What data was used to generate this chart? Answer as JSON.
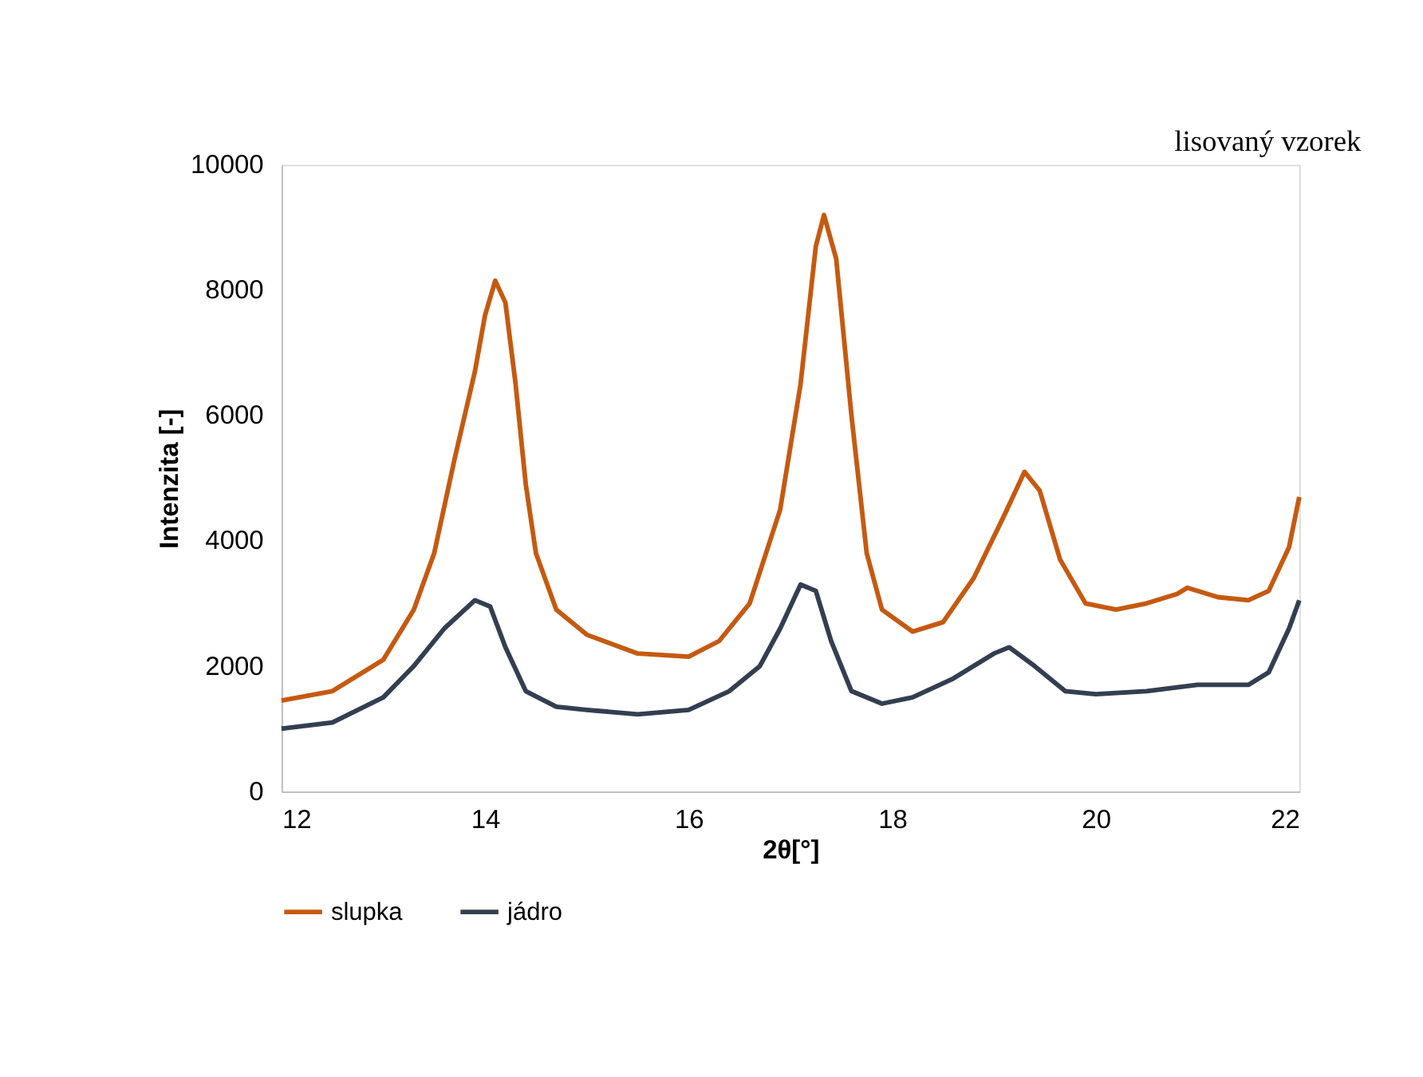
{
  "chart_data": {
    "type": "line",
    "xlabel": "2θ[°]",
    "ylabel": "Intenzita [-]",
    "annotations": [
      "lisovaný vzorek"
    ],
    "xlim": [
      12,
      22
    ],
    "xticks": [
      12,
      14,
      16,
      18,
      20,
      22
    ],
    "ylim": [
      0,
      10000
    ],
    "yticks": [
      0,
      2000,
      4000,
      6000,
      8000,
      10000
    ],
    "grid": false,
    "legend": "bottom",
    "marker": "none",
    "line_style": "solid",
    "series": [
      {
        "name": "slupka",
        "color": "#c55a11",
        "x": [
          12,
          12.5,
          13,
          13.3,
          13.5,
          13.7,
          13.9,
          14.0,
          14.1,
          14.2,
          14.3,
          14.4,
          14.5,
          14.7,
          15,
          15.5,
          16,
          16.3,
          16.6,
          16.9,
          17.1,
          17.25,
          17.33,
          17.45,
          17.6,
          17.75,
          17.9,
          18.2,
          18.5,
          18.8,
          19.1,
          19.3,
          19.45,
          19.65,
          19.9,
          20.2,
          20.5,
          20.8,
          20.9,
          21.2,
          21.5,
          21.7,
          21.9,
          22
        ],
        "values": [
          1450,
          1600,
          2100,
          2900,
          3800,
          5300,
          6700,
          7600,
          8150,
          7800,
          6500,
          4900,
          3800,
          2900,
          2500,
          2200,
          2150,
          2400,
          3000,
          4500,
          6500,
          8700,
          9200,
          8500,
          6000,
          3800,
          2900,
          2550,
          2700,
          3400,
          4400,
          5100,
          4800,
          3700,
          3000,
          2900,
          3000,
          3150,
          3250,
          3100,
          3050,
          3200,
          3900,
          4700
        ]
      },
      {
        "name": "jádro",
        "color": "#333f50",
        "x": [
          12,
          12.5,
          13,
          13.3,
          13.6,
          13.9,
          14.05,
          14.2,
          14.4,
          14.7,
          15,
          15.5,
          16,
          16.4,
          16.7,
          16.9,
          17.1,
          17.25,
          17.4,
          17.6,
          17.9,
          18.2,
          18.6,
          19.0,
          19.15,
          19.4,
          19.7,
          20,
          20.5,
          21,
          21.5,
          21.7,
          21.9,
          22
        ],
        "values": [
          1000,
          1100,
          1500,
          2000,
          2600,
          3050,
          2950,
          2300,
          1600,
          1350,
          1300,
          1230,
          1300,
          1600,
          2000,
          2600,
          3300,
          3200,
          2400,
          1600,
          1400,
          1500,
          1800,
          2200,
          2300,
          2000,
          1600,
          1550,
          1600,
          1700,
          1700,
          1900,
          2600,
          3050
        ]
      }
    ]
  }
}
